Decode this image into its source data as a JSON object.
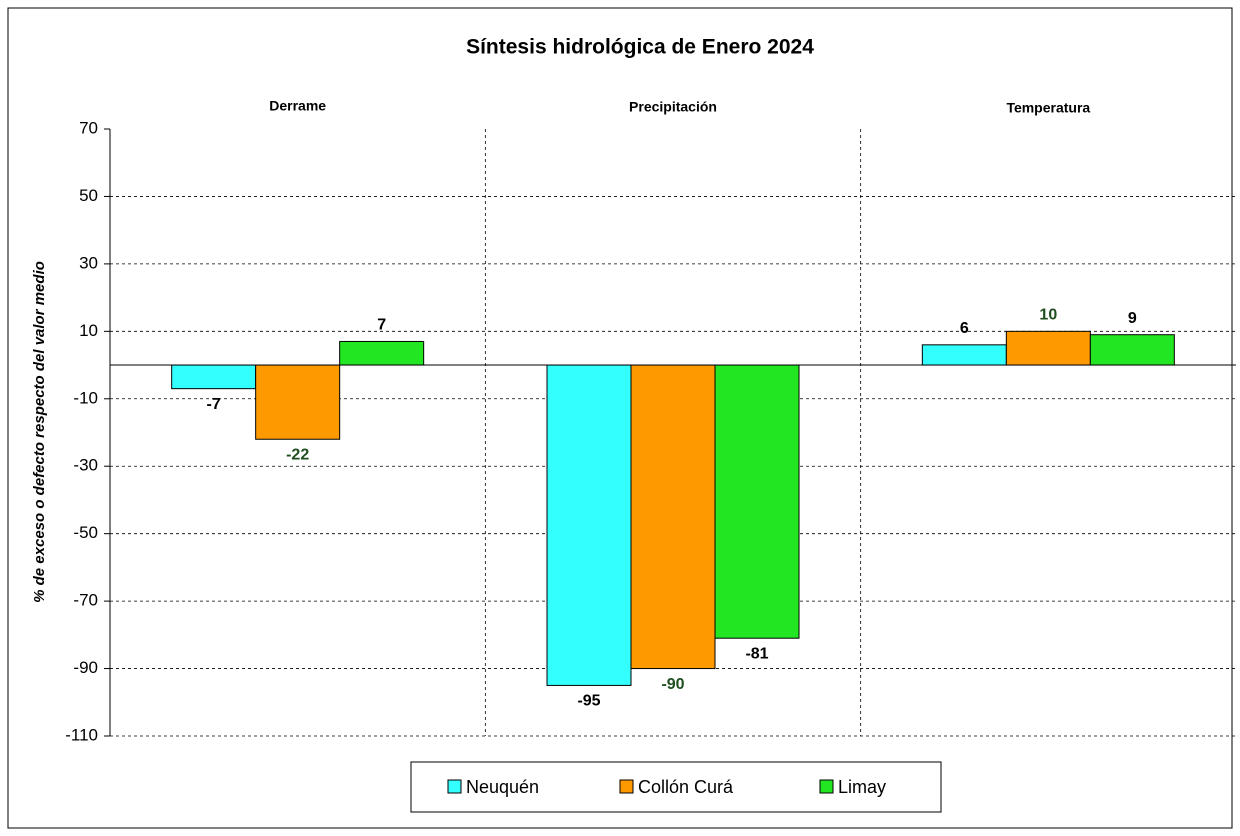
{
  "chart_data": {
    "type": "bar",
    "title": "Síntesis hidrológica de Enero 2024",
    "y_label": "% de exceso o defecto respecto del valor medio",
    "categories": [
      "Derrame",
      "Precipitación",
      "Temperatura"
    ],
    "series": [
      {
        "name": "Neuquén",
        "color": "#33ffff",
        "label_color": "#000000",
        "values": [
          -7,
          -95,
          6
        ]
      },
      {
        "name": "Collón Curá",
        "color": "#ff9900",
        "label_color": "#1e4d1e",
        "values": [
          -22,
          -90,
          10
        ]
      },
      {
        "name": "Limay",
        "color": "#22e622",
        "label_color": "#000000",
        "values": [
          7,
          -81,
          9
        ]
      }
    ],
    "ylim": [
      -110,
      70
    ],
    "yticks": [
      70,
      50,
      30,
      10,
      -10,
      -30,
      -50,
      -70,
      -90,
      -110
    ],
    "grid": true,
    "legend": "bottom"
  }
}
